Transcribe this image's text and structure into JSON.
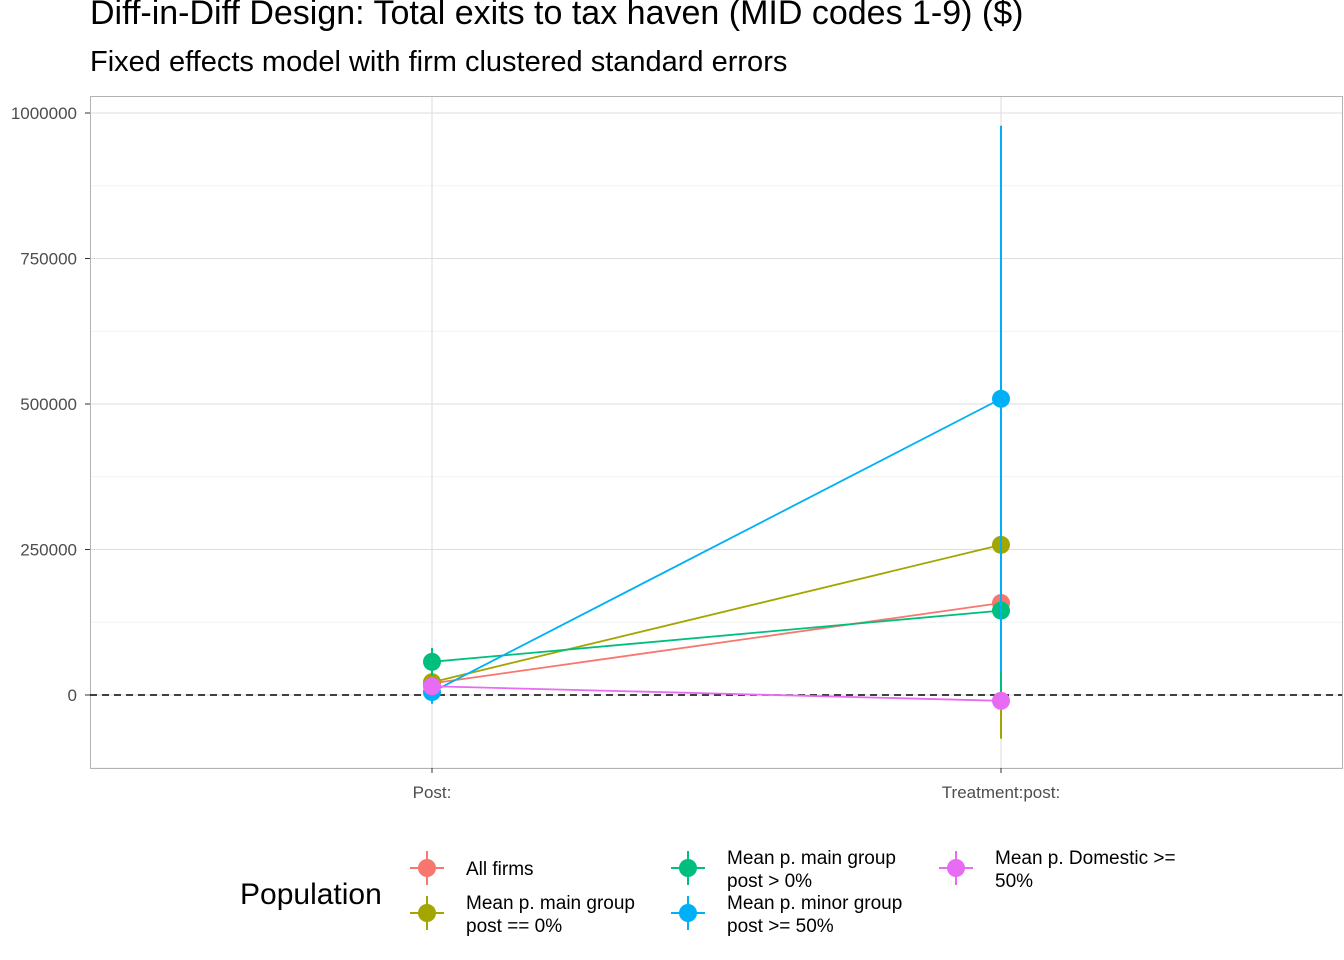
{
  "chart_data": {
    "type": "scatter",
    "title": "Diff-in-Diff Design: Total exits to tax haven (MID codes 1-9)  ($)",
    "subtitle": "Fixed effects model with firm clustered standard errors",
    "categories": [
      "Post:",
      "Treatment:post:"
    ],
    "y_ticks": [
      0,
      250000,
      500000,
      750000,
      1000000
    ],
    "y_tick_labels": [
      "0",
      "250000",
      "500000",
      "750000",
      "1000000"
    ],
    "ylim": [
      -125000,
      1030000
    ],
    "reference_line": 0,
    "grid": true,
    "legend_title": "Population",
    "legend_position": "bottom",
    "series": [
      {
        "name": "All firms",
        "name_lines": [
          "All firms"
        ],
        "color": "#F8766D",
        "points": [
          {
            "est": 20000,
            "lo": 5000,
            "hi": 35000
          },
          {
            "est": 158000,
            "lo": 150000,
            "hi": 166000
          }
        ]
      },
      {
        "name": "Mean p. main group post == 0%",
        "name_lines": [
          "Mean p. main group",
          "post == 0%"
        ],
        "color": "#A3A500",
        "points": [
          {
            "est": 22000,
            "lo": 5000,
            "hi": 39000
          },
          {
            "est": 258000,
            "lo": -75000,
            "hi": 591000
          }
        ]
      },
      {
        "name": "Mean p. main group post > 0%",
        "name_lines": [
          "Mean p. main group",
          "post > 0%"
        ],
        "color": "#00BF7D",
        "points": [
          {
            "est": 57000,
            "lo": 33000,
            "hi": 81000
          },
          {
            "est": 145000,
            "lo": 5000,
            "hi": 285000
          }
        ]
      },
      {
        "name": "Mean p. minor group post >= 50%",
        "name_lines": [
          "Mean p. minor group",
          "post >= 50%"
        ],
        "color": "#00B0F6",
        "points": [
          {
            "est": 5000,
            "lo": -15000,
            "hi": 25000
          },
          {
            "est": 509000,
            "lo": 40000,
            "hi": 978000
          }
        ]
      },
      {
        "name": "Mean p. Domestic >= 50%",
        "name_lines": [
          "Mean p. Domestic >=",
          "50%"
        ],
        "color": "#E76BF3",
        "points": [
          {
            "est": 15000,
            "lo": 10000,
            "hi": 20000
          },
          {
            "est": -10000,
            "lo": -18000,
            "hi": -2000
          }
        ]
      }
    ]
  }
}
